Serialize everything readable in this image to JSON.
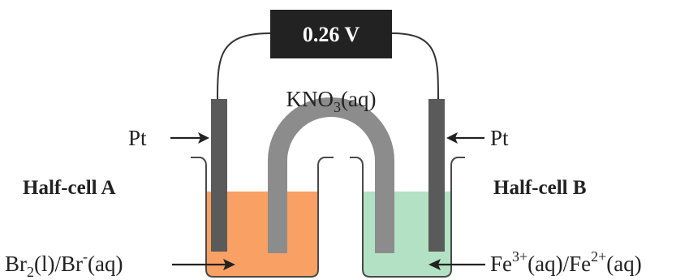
{
  "voltmeter": {
    "reading": "0.26 V"
  },
  "salt_bridge": {
    "formula_main": "KNO",
    "formula_sub": "3",
    "formula_tail": "(aq)"
  },
  "electrodes": {
    "left_label": "Pt",
    "right_label": "Pt"
  },
  "half_cell_a": {
    "title": "Half-cell A",
    "species": {
      "p1": "Br",
      "s1": "2",
      "p2": "(l)/Br",
      "sup1": "-",
      "p3": "(aq)"
    },
    "solution_color": "#f9a064"
  },
  "half_cell_b": {
    "title": "Half-cell B",
    "species": {
      "p1": "Fe",
      "sup1": "3+",
      "p2": "(aq)/Fe",
      "sup2": "2+",
      "p3": "(aq)"
    },
    "solution_color": "#b3e1c4"
  },
  "colors": {
    "voltmeter_bg": "#222222",
    "voltmeter_text": "#ffffff",
    "electrode": "#5a5a5a",
    "salt_bridge": "#8c8c8c",
    "beaker_outline": "#4a4a4a",
    "wire": "#333333"
  }
}
